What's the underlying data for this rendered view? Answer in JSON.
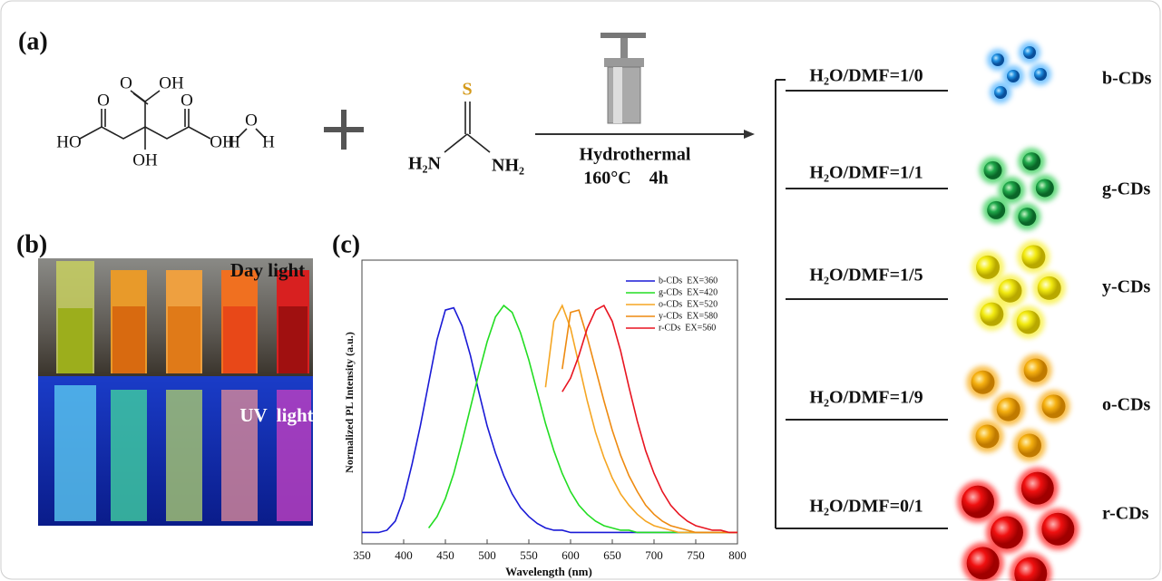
{
  "figure": {
    "panel_a": "(a)",
    "panel_b": "(b)",
    "citric_acid": [
      "HO",
      "O",
      "O",
      "OH",
      "O",
      "OH",
      "OH"
    ],
    "water": [
      "H",
      "O",
      "H"
    ],
    "thiourea": [
      "S",
      "H₂N",
      "NH₂"
    ],
    "condition": "Hydrothermal",
    "temperature_time": "160°C    4h",
    "solvents": [
      "H₂O/DMF=1/0",
      "H₂O/DMF=1/1",
      "H₂O/DMF=1/5",
      "H₂O/DMF=1/9",
      "H₂O/DMF=0/1"
    ],
    "products": [
      "b-CDs",
      "g-CDs",
      "y-CDs",
      "o-CDs",
      "r-CDs"
    ],
    "photo_day": "Day light",
    "photo_uv": "UV  light"
  },
  "chart_data": {
    "type": "line",
    "panel": "(c)",
    "x_label": "Wavelength (nm)",
    "y_label": "Normalized PL Intensity (a.u.)",
    "xlim": [
      350,
      800
    ],
    "ylim": [
      -0.05,
      1.2
    ],
    "xticks": [
      350,
      400,
      450,
      500,
      550,
      600,
      650,
      700,
      750,
      800
    ],
    "x": [
      350,
      360,
      370,
      380,
      390,
      400,
      410,
      420,
      430,
      440,
      450,
      460,
      470,
      480,
      490,
      500,
      510,
      520,
      530,
      540,
      550,
      560,
      570,
      580,
      590,
      600,
      610,
      620,
      630,
      640,
      650,
      660,
      670,
      680,
      690,
      700,
      710,
      720,
      730,
      740,
      750,
      760,
      770,
      780,
      790,
      800
    ],
    "series": [
      {
        "name": "b-CDs  EX=360",
        "color": "#1a1ad6",
        "values": [
          0,
          0,
          0,
          0.01,
          0.05,
          0.15,
          0.3,
          0.47,
          0.66,
          0.85,
          0.98,
          0.99,
          0.91,
          0.78,
          0.62,
          0.47,
          0.35,
          0.25,
          0.17,
          0.11,
          0.07,
          0.04,
          0.02,
          0.01,
          0.01,
          0,
          0,
          0,
          0,
          0,
          0,
          0,
          0,
          0,
          0,
          0,
          0,
          0,
          0,
          0,
          0,
          0,
          0,
          0,
          0,
          0
        ]
      },
      {
        "name": "g-CDs  EX=420",
        "color": "#22dd22",
        "values": [
          null,
          null,
          null,
          null,
          null,
          null,
          null,
          null,
          0.02,
          0.07,
          0.15,
          0.26,
          0.4,
          0.55,
          0.7,
          0.84,
          0.95,
          1.0,
          0.97,
          0.88,
          0.76,
          0.62,
          0.48,
          0.36,
          0.26,
          0.18,
          0.12,
          0.08,
          0.05,
          0.03,
          0.02,
          0.01,
          0.01,
          0,
          0,
          0,
          0,
          0,
          0,
          0,
          0,
          0,
          0,
          0,
          0,
          0
        ]
      },
      {
        "name": "o-CDs  EX=520",
        "color": "#f5a623",
        "values": [
          null,
          null,
          null,
          null,
          null,
          null,
          null,
          null,
          null,
          null,
          null,
          null,
          null,
          null,
          null,
          null,
          null,
          null,
          null,
          null,
          null,
          null,
          0.64,
          0.93,
          1.0,
          0.9,
          0.74,
          0.58,
          0.44,
          0.33,
          0.24,
          0.17,
          0.12,
          0.08,
          0.05,
          0.03,
          0.02,
          0.01,
          0,
          0,
          0,
          0,
          0,
          0,
          0,
          0
        ]
      },
      {
        "name": "y-CDs  EX=580",
        "color": "#ee8a10",
        "values": [
          null,
          null,
          null,
          null,
          null,
          null,
          null,
          null,
          null,
          null,
          null,
          null,
          null,
          null,
          null,
          null,
          null,
          null,
          null,
          null,
          null,
          null,
          null,
          null,
          0.72,
          0.97,
          0.98,
          0.86,
          0.72,
          0.58,
          0.45,
          0.34,
          0.25,
          0.18,
          0.12,
          0.08,
          0.05,
          0.03,
          0.02,
          0.01,
          0,
          0,
          0,
          0,
          0,
          0
        ]
      },
      {
        "name": "r-CDs  EX=560",
        "color": "#e81420",
        "values": [
          null,
          null,
          null,
          null,
          null,
          null,
          null,
          null,
          null,
          null,
          null,
          null,
          null,
          null,
          null,
          null,
          null,
          null,
          null,
          null,
          null,
          null,
          null,
          null,
          0.62,
          0.68,
          0.78,
          0.9,
          0.98,
          1.0,
          0.93,
          0.8,
          0.64,
          0.49,
          0.36,
          0.26,
          0.18,
          0.12,
          0.08,
          0.05,
          0.03,
          0.02,
          0.01,
          0.01,
          0,
          0
        ]
      }
    ]
  }
}
